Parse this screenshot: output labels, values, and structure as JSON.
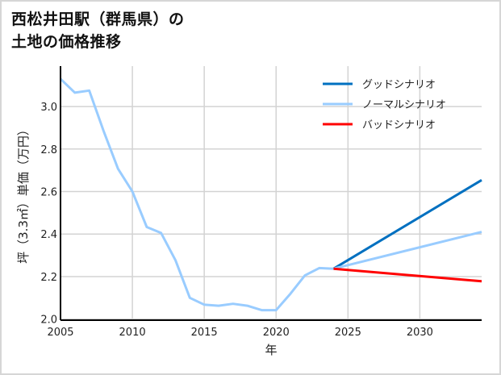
{
  "title": "西松井田駅（群馬県）の\n土地の価格推移",
  "chart_data": {
    "type": "line",
    "title": "西松井田駅（群馬県）の土地の価格推移",
    "xlabel": "年",
    "ylabel": "坪（3.3㎡）単価（万円）",
    "xlim": [
      2005,
      2034.3
    ],
    "ylim": [
      1.995,
      3.19
    ],
    "xticks": [
      2005,
      2010,
      2015,
      2020,
      2025,
      2030
    ],
    "yticks": [
      2.0,
      2.2,
      2.4,
      2.6,
      2.8,
      3.0
    ],
    "ytick_labels": [
      "2.0",
      "2.2",
      "2.4",
      "2.6",
      "2.8",
      "3.0"
    ],
    "grid": true,
    "legend_position": "upper right",
    "series": [
      {
        "name": "ノーマルシナリオ",
        "role": "history",
        "color": "#99ccff",
        "x": [
          2005,
          2006,
          2007,
          2008,
          2009,
          2010,
          2011,
          2012,
          2013,
          2014,
          2015,
          2016,
          2017,
          2018,
          2019,
          2020,
          2021,
          2022,
          2023,
          2024
        ],
        "values": [
          3.13,
          3.065,
          3.075,
          2.885,
          2.707,
          2.6,
          2.433,
          2.405,
          2.277,
          2.1,
          2.068,
          2.063,
          2.072,
          2.063,
          2.042,
          2.042,
          2.12,
          2.205,
          2.24,
          2.237
        ]
      },
      {
        "name": "グッドシナリオ",
        "color": "#0070c0",
        "x": [
          2024,
          2034.3
        ],
        "values": [
          2.237,
          2.654
        ]
      },
      {
        "name": "ノーマルシナリオ",
        "color": "#99ccff",
        "x": [
          2024,
          2034.3
        ],
        "values": [
          2.237,
          2.41
        ]
      },
      {
        "name": "バッドシナリオ",
        "color": "#ff0000",
        "x": [
          2024,
          2034.3
        ],
        "values": [
          2.237,
          2.178
        ]
      }
    ],
    "legend": [
      {
        "label": "グッドシナリオ",
        "color": "#0070c0"
      },
      {
        "label": "ノーマルシナリオ",
        "color": "#99ccff"
      },
      {
        "label": "バッドシナリオ",
        "color": "#ff0000"
      }
    ]
  }
}
